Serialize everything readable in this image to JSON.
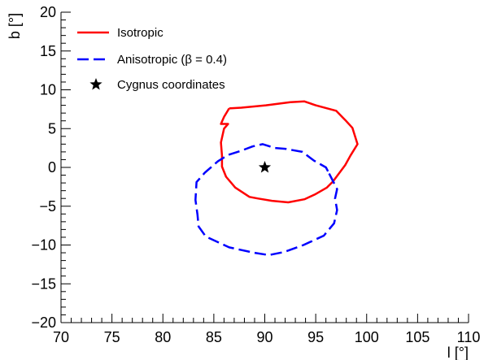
{
  "chart_data": {
    "type": "line",
    "xlabel": "l [°]",
    "ylabel": "b [°]",
    "xlim": [
      70,
      110
    ],
    "ylim": [
      -20,
      20
    ],
    "x_ticks": [
      "70",
      "75",
      "80",
      "85",
      "90",
      "95",
      "100",
      "105",
      "110"
    ],
    "y_ticks": [
      "−20",
      "−15",
      "−10",
      "−5",
      "0",
      "5",
      "10",
      "15",
      "20"
    ],
    "grid": false,
    "legend_position": "top-left",
    "series": [
      {
        "name": "Isotropic",
        "style": "solid",
        "color": "#ff0000",
        "points": [
          [
            86.5,
            7.6
          ],
          [
            87.7,
            7.7
          ],
          [
            90.1,
            8.0
          ],
          [
            92.5,
            8.4
          ],
          [
            93.9,
            8.5
          ],
          [
            95.0,
            8.0
          ],
          [
            97.0,
            7.3
          ],
          [
            97.9,
            6.1
          ],
          [
            98.6,
            5.1
          ],
          [
            99.1,
            3.0
          ],
          [
            98.4,
            1.5
          ],
          [
            97.9,
            0.3
          ],
          [
            96.7,
            -1.8
          ],
          [
            96.1,
            -2.6
          ],
          [
            94.9,
            -3.5
          ],
          [
            93.9,
            -4.1
          ],
          [
            92.3,
            -4.5
          ],
          [
            90.7,
            -4.3
          ],
          [
            89.3,
            -4.0
          ],
          [
            88.5,
            -3.8
          ],
          [
            87.1,
            -2.6
          ],
          [
            86.2,
            -1.2
          ],
          [
            85.8,
            0.1
          ],
          [
            85.8,
            1.5
          ],
          [
            85.7,
            3.2
          ],
          [
            86.0,
            5.0
          ],
          [
            86.4,
            5.6
          ],
          [
            85.7,
            5.6
          ],
          [
            86.0,
            6.5
          ],
          [
            86.5,
            7.6
          ]
        ]
      },
      {
        "name": "Anisotropic (β = 0.4)",
        "style": "dashed",
        "color": "#0000ff",
        "points": [
          [
            96.2,
            -0.5
          ],
          [
            96.0,
            0.0
          ],
          [
            94.8,
            0.9
          ],
          [
            93.7,
            2.0
          ],
          [
            92.0,
            2.4
          ],
          [
            91.0,
            2.5
          ],
          [
            89.8,
            3.0
          ],
          [
            88.8,
            2.7
          ],
          [
            87.6,
            2.1
          ],
          [
            86.4,
            1.6
          ],
          [
            85.4,
            0.8
          ],
          [
            84.1,
            -0.7
          ],
          [
            83.3,
            -1.9
          ],
          [
            83.2,
            -4.2
          ],
          [
            83.4,
            -6.1
          ],
          [
            83.5,
            -7.6
          ],
          [
            84.2,
            -8.9
          ],
          [
            86.5,
            -10.3
          ],
          [
            89.0,
            -11.0
          ],
          [
            90.4,
            -11.3
          ],
          [
            91.9,
            -10.9
          ],
          [
            93.8,
            -10.0
          ],
          [
            95.8,
            -8.8
          ],
          [
            96.8,
            -7.2
          ],
          [
            97.1,
            -5.5
          ],
          [
            96.9,
            -4.0
          ],
          [
            97.1,
            -2.8
          ],
          [
            96.2,
            -0.5
          ]
        ]
      }
    ],
    "markers": [
      {
        "name": "Cygnus coordinates",
        "x": 90.0,
        "y": 0.0,
        "symbol": "star",
        "color": "#000000"
      }
    ]
  }
}
